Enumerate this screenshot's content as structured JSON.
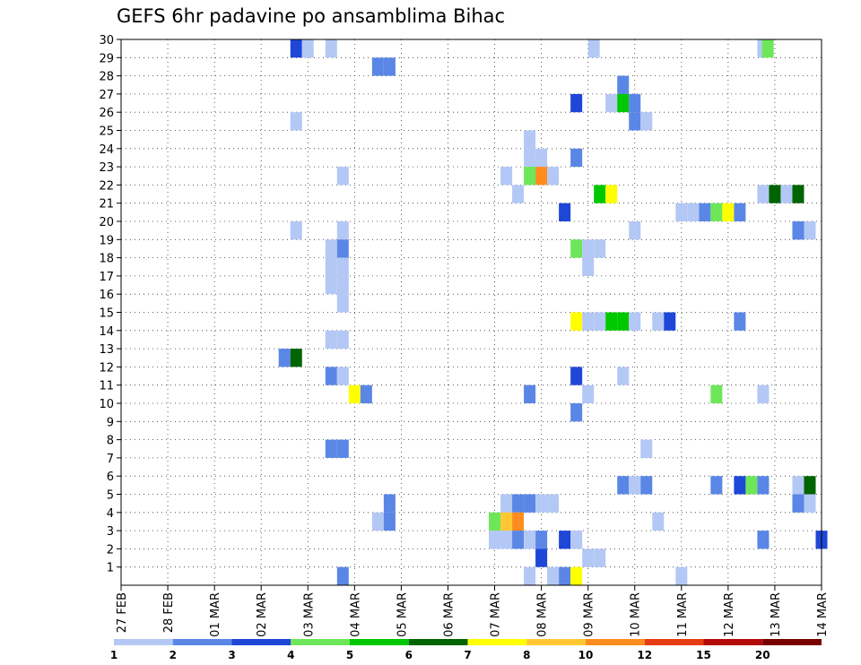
{
  "chart_data": {
    "type": "heatmap",
    "title": "GEFS 6hr padavine po ansamblima Bihac",
    "x_tick_labels": [
      "27 FEB",
      "28 FEB",
      "01 MAR",
      "02 MAR",
      "03 MAR",
      "04 MAR",
      "05 MAR",
      "06 MAR",
      "07 MAR",
      "08 MAR",
      "09 MAR",
      "10 MAR",
      "11 MAR",
      "12 MAR",
      "13 MAR",
      "14 MAR"
    ],
    "y_tick_labels": [
      "1",
      "2",
      "3",
      "4",
      "5",
      "6",
      "7",
      "8",
      "9",
      "10",
      "11",
      "12",
      "13",
      "14",
      "15",
      "16",
      "17",
      "18",
      "19",
      "20",
      "21",
      "22",
      "23",
      "24",
      "25",
      "26",
      "27",
      "28",
      "29",
      "30"
    ],
    "xlim": [
      0,
      60
    ],
    "ylim": [
      0,
      30
    ],
    "x_unit": "6-hour steps from 27 FEB 00Z",
    "grid": "dotted",
    "legend": {
      "placement": "bottom",
      "levels": [
        1,
        2,
        3,
        4,
        5,
        6,
        7,
        8,
        10,
        12,
        15,
        20
      ],
      "colors": [
        "#b4c8f5",
        "#5a87e6",
        "#1e46d7",
        "#6ee65a",
        "#00c800",
        "#006400",
        "#ffff00",
        "#ffc832",
        "#ff8c1e",
        "#e63c14",
        "#b40a0a",
        "#780000"
      ],
      "labels": [
        "1",
        "2",
        "3",
        "4",
        "5",
        "6",
        "7",
        "8",
        "10",
        "12",
        "15",
        "20"
      ]
    },
    "cells": [
      [
        15,
        29.5,
        3
      ],
      [
        16,
        29.5,
        1
      ],
      [
        18,
        29.5,
        1
      ],
      [
        55,
        29.5,
        1
      ],
      [
        55.4,
        29.5,
        4
      ],
      [
        40.5,
        29.5,
        1
      ],
      [
        22,
        28.5,
        2
      ],
      [
        23,
        28.5,
        2
      ],
      [
        43,
        27.5,
        2
      ],
      [
        39,
        26.5,
        3
      ],
      [
        42,
        26.5,
        1
      ],
      [
        43,
        26.5,
        5
      ],
      [
        44,
        26.5,
        2
      ],
      [
        15,
        25.5,
        1
      ],
      [
        44,
        25.5,
        2
      ],
      [
        45,
        25.5,
        1
      ],
      [
        35,
        24.5,
        1
      ],
      [
        35,
        23.5,
        1
      ],
      [
        36,
        23.5,
        1
      ],
      [
        39,
        23.5,
        2
      ],
      [
        33,
        22.5,
        1
      ],
      [
        35,
        22.5,
        4
      ],
      [
        36,
        22.5,
        9
      ],
      [
        37,
        22.5,
        1
      ],
      [
        19,
        22.5,
        1
      ],
      [
        34,
        21.5,
        1
      ],
      [
        41,
        21.5,
        5
      ],
      [
        42,
        21.5,
        7
      ],
      [
        55,
        21.5,
        1
      ],
      [
        56,
        21.5,
        6
      ],
      [
        57,
        21.5,
        1
      ],
      [
        58,
        21.5,
        6
      ],
      [
        38,
        20.5,
        3
      ],
      [
        48,
        20.5,
        1
      ],
      [
        49,
        20.5,
        1
      ],
      [
        50,
        20.5,
        2
      ],
      [
        51,
        20.5,
        4
      ],
      [
        52,
        20.5,
        7
      ],
      [
        53,
        20.5,
        2
      ],
      [
        15,
        19.5,
        1
      ],
      [
        19,
        19.5,
        1
      ],
      [
        44,
        19.5,
        1
      ],
      [
        58,
        19.5,
        2
      ],
      [
        59,
        19.5,
        1
      ],
      [
        18,
        18.5,
        1
      ],
      [
        19,
        18.5,
        2
      ],
      [
        39,
        18.5,
        4
      ],
      [
        40,
        18.5,
        1
      ],
      [
        41,
        18.5,
        1
      ],
      [
        18,
        17.5,
        1
      ],
      [
        19,
        17.5,
        1
      ],
      [
        40,
        17.5,
        1
      ],
      [
        18,
        16.5,
        1
      ],
      [
        19,
        16.5,
        1
      ],
      [
        19,
        15.5,
        1
      ],
      [
        39,
        14.5,
        7
      ],
      [
        40,
        14.5,
        1
      ],
      [
        41,
        14.5,
        1
      ],
      [
        42,
        14.5,
        5
      ],
      [
        43,
        14.5,
        5
      ],
      [
        44,
        14.5,
        1
      ],
      [
        46,
        14.5,
        1
      ],
      [
        47,
        14.5,
        3
      ],
      [
        53,
        14.5,
        2
      ],
      [
        18,
        13.5,
        1
      ],
      [
        19,
        13.5,
        1
      ],
      [
        14,
        12.5,
        2
      ],
      [
        15,
        12.5,
        6
      ],
      [
        18,
        11.5,
        2
      ],
      [
        19,
        11.5,
        1
      ],
      [
        39,
        11.5,
        3
      ],
      [
        43,
        11.5,
        1
      ],
      [
        20,
        10.5,
        7
      ],
      [
        21,
        10.5,
        2
      ],
      [
        35,
        10.5,
        2
      ],
      [
        40,
        10.5,
        1
      ],
      [
        51,
        10.5,
        4
      ],
      [
        55,
        10.5,
        1
      ],
      [
        39,
        9.5,
        2
      ],
      [
        45,
        7.5,
        1
      ],
      [
        18,
        7.5,
        2
      ],
      [
        19,
        7.5,
        2
      ],
      [
        43,
        5.5,
        2
      ],
      [
        44,
        5.5,
        1
      ],
      [
        45,
        5.5,
        2
      ],
      [
        51,
        5.5,
        2
      ],
      [
        53,
        5.5,
        3
      ],
      [
        54,
        5.5,
        4
      ],
      [
        55,
        5.5,
        2
      ],
      [
        58,
        5.5,
        1
      ],
      [
        59,
        5.5,
        6
      ],
      [
        23,
        4.5,
        2
      ],
      [
        33,
        4.5,
        1
      ],
      [
        34,
        4.5,
        2
      ],
      [
        35,
        4.5,
        2
      ],
      [
        36,
        4.5,
        1
      ],
      [
        37,
        4.5,
        1
      ],
      [
        58,
        4.5,
        2
      ],
      [
        59,
        4.5,
        1
      ],
      [
        22,
        3.5,
        1
      ],
      [
        23,
        3.5,
        2
      ],
      [
        32,
        3.5,
        4
      ],
      [
        33,
        3.5,
        8
      ],
      [
        34,
        3.5,
        9
      ],
      [
        46,
        3.5,
        1
      ],
      [
        32,
        2.5,
        1
      ],
      [
        33,
        2.5,
        1
      ],
      [
        34,
        2.5,
        2
      ],
      [
        35,
        2.5,
        1
      ],
      [
        36,
        2.5,
        2
      ],
      [
        38,
        2.5,
        3
      ],
      [
        39,
        2.5,
        1
      ],
      [
        55,
        2.5,
        2
      ],
      [
        60,
        2.5,
        3
      ],
      [
        36,
        1.5,
        3
      ],
      [
        40,
        1.5,
        1
      ],
      [
        41,
        1.5,
        1
      ],
      [
        35,
        0.5,
        1
      ],
      [
        37,
        0.5,
        1
      ],
      [
        38,
        0.5,
        2
      ],
      [
        39,
        0.5,
        7
      ],
      [
        19,
        0.5,
        2
      ],
      [
        48,
        0.5,
        1
      ]
    ]
  }
}
